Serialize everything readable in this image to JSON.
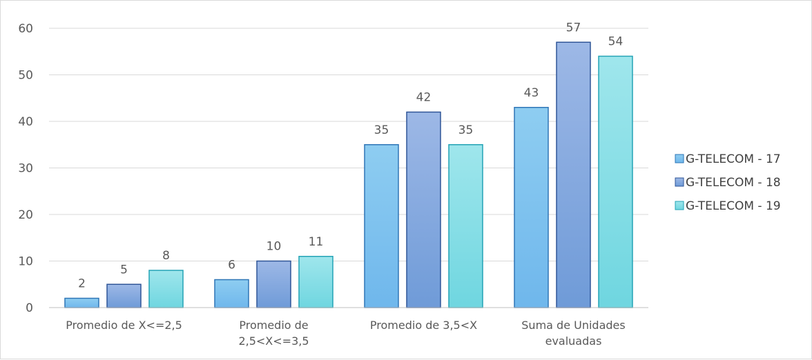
{
  "chart_data": {
    "type": "bar",
    "title": "",
    "xlabel": "",
    "ylabel": "",
    "ylim": [
      0,
      60
    ],
    "yticks": [
      0,
      10,
      20,
      30,
      40,
      50,
      60
    ],
    "grid": true,
    "legend_position": "right",
    "categories": [
      [
        "Promedio de X<=2,5"
      ],
      [
        "Promedio de",
        "2,5<X<=3,5"
      ],
      [
        "Promedio de 3,5<X"
      ],
      [
        "Suma de Unidades",
        "evaluadas"
      ]
    ],
    "series": [
      {
        "name": "G-TELECOM - 17",
        "values": [
          2,
          6,
          35,
          43
        ],
        "color": "#8ecdf1",
        "color_bottom": "#6fb7ec",
        "stroke": "#2e75b6"
      },
      {
        "name": "G-TELECOM - 18",
        "values": [
          5,
          10,
          42,
          57
        ],
        "color": "#9db8e6",
        "color_bottom": "#6f9bd8",
        "stroke": "#2f5597"
      },
      {
        "name": "G-TELECOM - 19",
        "values": [
          8,
          11,
          35,
          54
        ],
        "color": "#9fe6ec",
        "color_bottom": "#6fd6e0",
        "stroke": "#23a3b5"
      }
    ]
  }
}
